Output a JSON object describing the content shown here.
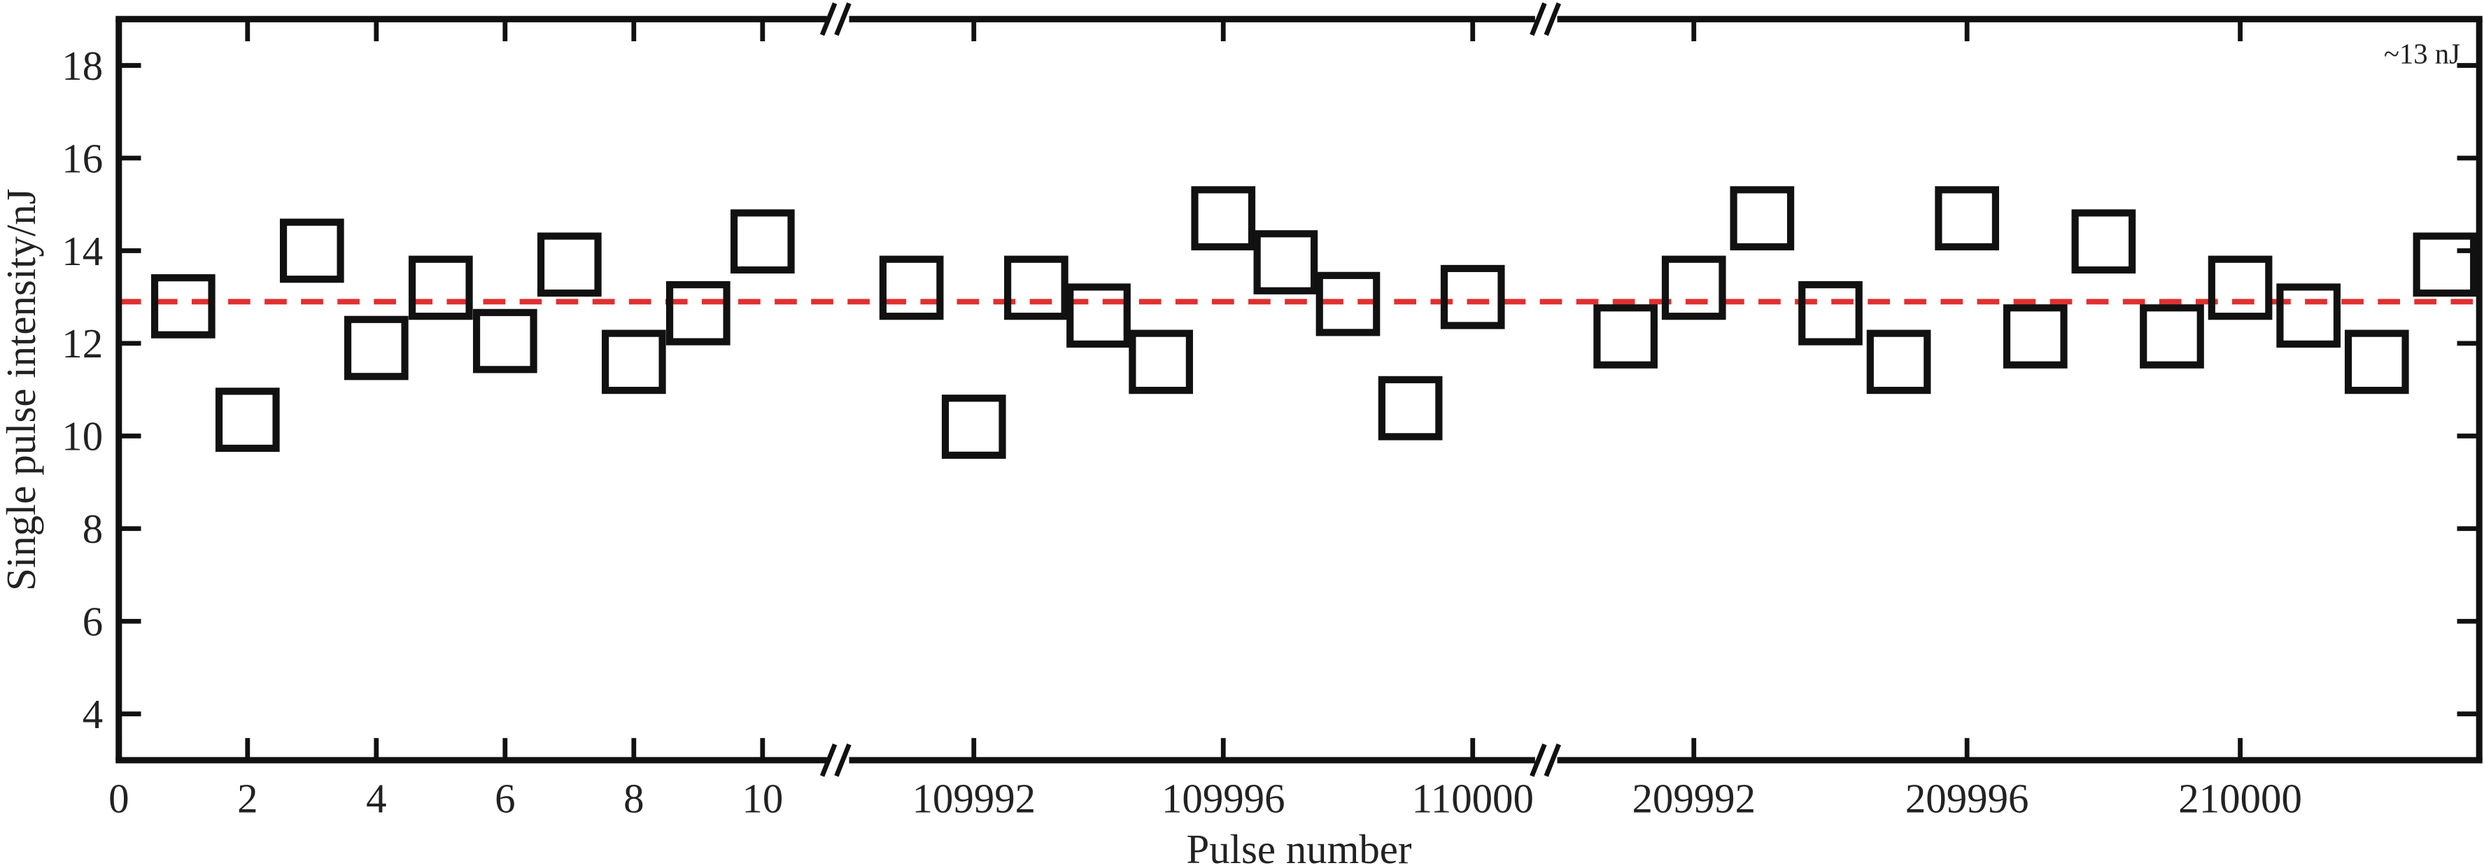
{
  "chart_data": {
    "type": "scatter",
    "x_label": "Pulse number",
    "y_label": "Single pulse intensity/nJ",
    "annotation": "~13 nJ",
    "ylim": [
      3,
      19
    ],
    "yticks": [
      4,
      6,
      8,
      10,
      12,
      14,
      16,
      18
    ],
    "marker_color": "#111111",
    "reference_line": {
      "value": 12.9,
      "color": "#e03030"
    },
    "segments": [
      {
        "xlim": [
          0,
          11
        ],
        "xticks": [
          0,
          2,
          4,
          6,
          8,
          10
        ],
        "x": [
          1,
          2,
          3,
          4,
          5,
          6,
          7,
          8,
          9,
          10
        ],
        "values": [
          12.8,
          10.35,
          14.0,
          11.9,
          13.2,
          12.05,
          13.7,
          11.6,
          12.65,
          14.2
        ]
      },
      {
        "xlim": [
          109990,
          110001
        ],
        "xticks": [
          109992,
          109996,
          110000
        ],
        "x": [
          109991,
          109992,
          109993,
          109994,
          109995,
          109996,
          109997,
          109998,
          109999,
          110000
        ],
        "values": [
          13.2,
          10.2,
          13.2,
          12.6,
          11.6,
          14.7,
          13.75,
          12.85,
          10.6,
          13.0
        ]
      },
      {
        "xlim": [
          209990,
          210003.5
        ],
        "xticks": [
          209992,
          209996,
          210000
        ],
        "x": [
          209991,
          209992,
          209993,
          209994,
          209995,
          209996,
          209997,
          209998,
          209999,
          210000,
          210001,
          210002,
          210003
        ],
        "values": [
          12.15,
          13.2,
          14.7,
          12.65,
          11.6,
          14.7,
          12.15,
          14.2,
          12.15,
          13.2,
          12.6,
          11.6,
          13.7
        ]
      }
    ]
  }
}
